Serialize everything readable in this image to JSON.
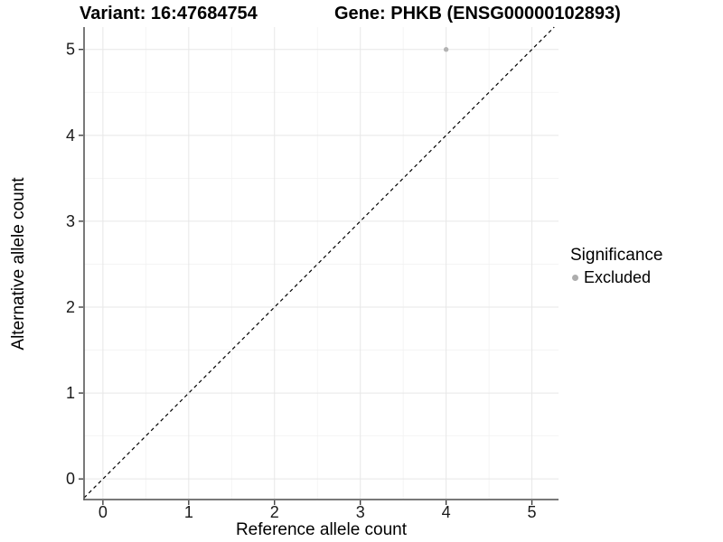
{
  "chart_data": {
    "type": "scatter",
    "title_left": "Variant: 16:47684754",
    "title_right": "Gene: PHKB (ENSG00000102893)",
    "xlabel": "Reference allele count",
    "ylabel": "Alternative allele count",
    "xlim": [
      -0.22,
      5.31
    ],
    "ylim": [
      -0.24,
      5.26
    ],
    "xticks": [
      0,
      1,
      2,
      3,
      4,
      5
    ],
    "yticks": [
      0,
      1,
      2,
      3,
      4,
      5
    ],
    "minor_step": 0.5,
    "grid": "major+minor",
    "reference_line": {
      "kind": "identity",
      "slope": 1,
      "intercept": 0,
      "style": "dashed",
      "color": "#000000"
    },
    "series": [
      {
        "name": "Excluded",
        "color": "#b3b3b3",
        "points": [
          {
            "x": 4,
            "y": 5
          }
        ]
      }
    ],
    "legend": {
      "position": "right",
      "title": "Significance",
      "items": [
        {
          "label": "Excluded",
          "color": "#adadad"
        }
      ]
    },
    "colors": {
      "grid_major": "#e7e7e7",
      "grid_minor": "#f2f2f2",
      "axis_line": "#4d4d4d",
      "tick_mark": "#333333",
      "tick_text": "#1a1a1a"
    }
  }
}
